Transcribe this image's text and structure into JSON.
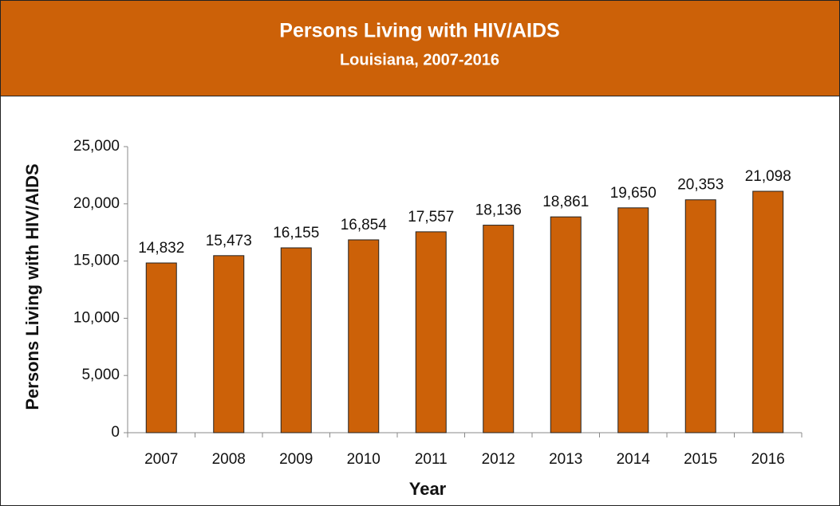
{
  "chart_data": {
    "type": "bar",
    "title": "Persons Living with HIV/AIDS",
    "subtitle": "Louisiana, 2007-2016",
    "x_label": "Year",
    "y_label": "Persons Living with HIV/AIDS",
    "categories": [
      "2007",
      "2008",
      "2009",
      "2010",
      "2011",
      "2012",
      "2013",
      "2014",
      "2015",
      "2016"
    ],
    "values": [
      14832,
      15473,
      16155,
      16854,
      17557,
      18136,
      18861,
      19650,
      20353,
      21098
    ],
    "value_labels": [
      "14,832",
      "15,473",
      "16,155",
      "16,854",
      "17,557",
      "18,136",
      "18,861",
      "19,650",
      "20,353",
      "21,098"
    ],
    "color": "#cc6108",
    "ylim": [
      0,
      25000
    ],
    "yticks": [
      0,
      {
        "value": 5000,
        "label": "5,000"
      },
      {
        "value": 10000,
        "label": "10,000"
      },
      {
        "value": 15000,
        "label": "15,000"
      },
      {
        "value": 20000,
        "label": "20,000"
      },
      {
        "value": 25000,
        "label": "25,000"
      }
    ],
    "grid": false
  }
}
